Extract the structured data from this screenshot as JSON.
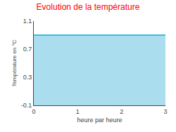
{
  "chart_data": {
    "type": "area",
    "title": "Evolution de la température",
    "xlabel": "heure par heure",
    "ylabel": "Température en °C",
    "x": [
      0,
      3
    ],
    "values": [
      0.9,
      0.9
    ],
    "color": "#44bbdd",
    "xlim": [
      0,
      3
    ],
    "ylim": [
      -0.1,
      1.1
    ],
    "xticks": [
      0,
      1,
      2,
      3
    ],
    "yticks": [
      -0.1,
      0.3,
      0.7,
      1.1
    ],
    "grid": true
  }
}
